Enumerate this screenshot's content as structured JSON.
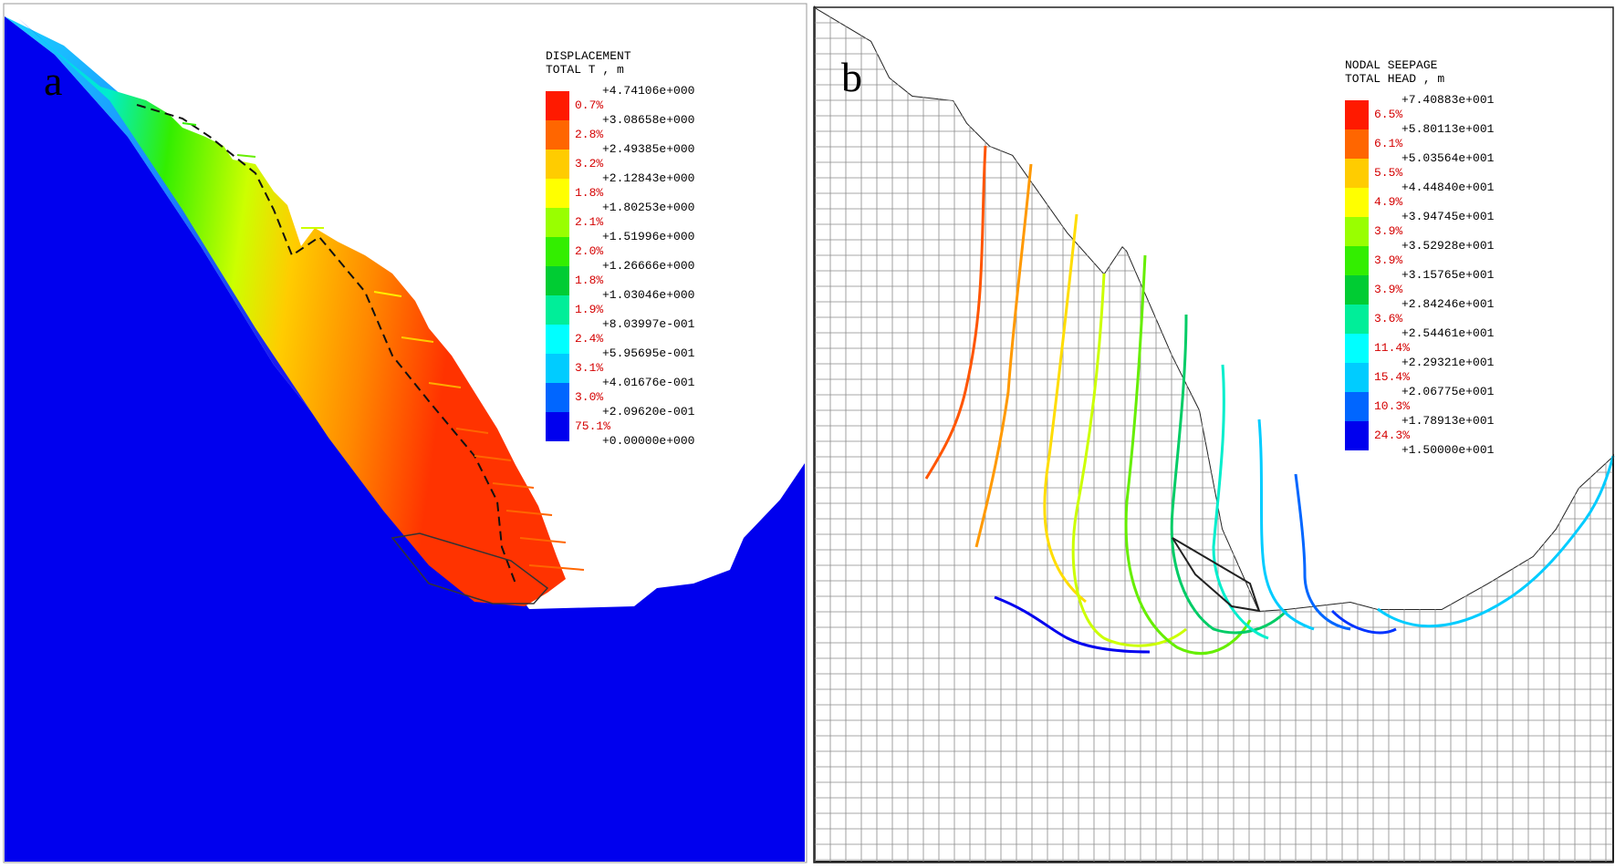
{
  "panel_a": {
    "letter": "a",
    "legend": {
      "title_line1": "DISPLACEMENT",
      "title_line2": "TOTAL T , m",
      "ticks": [
        "+4.74106e+000",
        "+3.08658e+000",
        "+2.49385e+000",
        "+2.12843e+000",
        "+1.80253e+000",
        "+1.51996e+000",
        "+1.26666e+000",
        "+1.03046e+000",
        "+8.03997e-001",
        "+5.95695e-001",
        "+4.01676e-001",
        "+2.09620e-001",
        "+0.00000e+000"
      ],
      "bins": [
        {
          "pct": "0.7%",
          "color": "#ff1a00"
        },
        {
          "pct": "2.8%",
          "color": "#ff6600"
        },
        {
          "pct": "3.2%",
          "color": "#ffcc00"
        },
        {
          "pct": "1.8%",
          "color": "#ffff00"
        },
        {
          "pct": "2.1%",
          "color": "#99ff00"
        },
        {
          "pct": "2.0%",
          "color": "#33ee00"
        },
        {
          "pct": "1.8%",
          "color": "#00cc33"
        },
        {
          "pct": "1.9%",
          "color": "#00ee99"
        },
        {
          "pct": "2.4%",
          "color": "#00ffff"
        },
        {
          "pct": "3.1%",
          "color": "#00ccff"
        },
        {
          "pct": "3.0%",
          "color": "#0066ff"
        },
        {
          "pct": "75.1%",
          "color": "#0000ee"
        }
      ]
    }
  },
  "panel_b": {
    "letter": "b",
    "legend": {
      "title_line1": "NODAL SEEPAGE",
      "title_line2": "TOTAL HEAD , m",
      "ticks": [
        "+7.40883e+001",
        "+5.80113e+001",
        "+5.03564e+001",
        "+4.44840e+001",
        "+3.94745e+001",
        "+3.52928e+001",
        "+3.15765e+001",
        "+2.84246e+001",
        "+2.54461e+001",
        "+2.29321e+001",
        "+2.06775e+001",
        "+1.78913e+001",
        "+1.50000e+001"
      ],
      "bins": [
        {
          "pct": "6.5%",
          "color": "#ff1a00"
        },
        {
          "pct": "6.1%",
          "color": "#ff6600"
        },
        {
          "pct": "5.5%",
          "color": "#ffcc00"
        },
        {
          "pct": "4.9%",
          "color": "#ffff00"
        },
        {
          "pct": "3.9%",
          "color": "#99ff00"
        },
        {
          "pct": "3.9%",
          "color": "#33ee00"
        },
        {
          "pct": "3.9%",
          "color": "#00cc33"
        },
        {
          "pct": "3.6%",
          "color": "#00ee99"
        },
        {
          "pct": "11.4%",
          "color": "#00ffff"
        },
        {
          "pct": "15.4%",
          "color": "#00ccff"
        },
        {
          "pct": "10.3%",
          "color": "#0066ff"
        },
        {
          "pct": "24.3%",
          "color": "#0000ee"
        }
      ]
    }
  }
}
